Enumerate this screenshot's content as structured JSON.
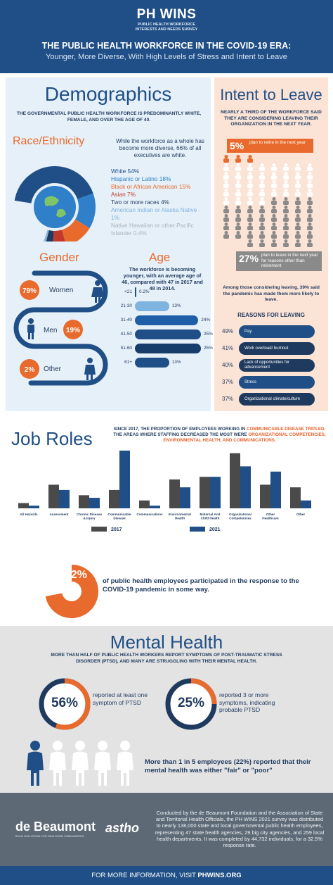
{
  "header": {
    "logo": "PH WINS",
    "logo_sub_1": "PUBLIC HEALTH WORKFORCE",
    "logo_sub_2": "INTERESTS AND NEEDS SURVEY",
    "title": "THE PUBLIC HEALTH WORKFORCE IN THE COVID-19 ERA:",
    "subtitle": "Younger, More Diverse, With High Levels of Stress and Intent to Leave"
  },
  "demographics": {
    "title": "Demographics",
    "desc": "THE GOVERNMENTAL PUBLIC HEALTH WORKFORCE IS PREDOMINANTLY WHITE, FEMALE, AND OVER THE AGE OF 40.",
    "race_title": "Race/Ethnicity",
    "race_desc": "While the workforce as a whole has become more diverse, 66% of all executives are white.",
    "race": [
      {
        "label": "White 54%",
        "value": 54,
        "color": "#1f4f86"
      },
      {
        "label": "Hispanic or Latino 18%",
        "value": 18,
        "color": "#2f7fc9"
      },
      {
        "label": "Black or African American 15%",
        "value": 15,
        "color": "#e86a2c"
      },
      {
        "label": "Asian 7%",
        "value": 7,
        "color": "#c0392b"
      },
      {
        "label": "Two or more races 4%",
        "value": 4,
        "color": "#1f3a5f"
      },
      {
        "label": "American Indian or Alaska Native 1%",
        "value": 1,
        "color": "#7fb3e0"
      },
      {
        "label": "Native Hawaiian or other Pacific Islander 0.4%",
        "value": 0.4,
        "color": "#a9b3bc"
      }
    ],
    "gender_title": "Gender",
    "gender": [
      {
        "pct": "79%",
        "label": "Women"
      },
      {
        "pct": "19%",
        "label": "Men"
      },
      {
        "pct": "2%",
        "label": "Other"
      }
    ],
    "age_title": "Age",
    "age_desc": "The workforce is becoming younger, with an average age of 46, compared with 47 in 2017 and 48 in 2014.",
    "age": [
      {
        "label": "<21",
        "value": 0.2,
        "value_label": "0.2%",
        "color": "#1f4f86"
      },
      {
        "label": "21-30",
        "value": 13,
        "value_label": "13%",
        "color": "#7fb3e0"
      },
      {
        "label": "31-40",
        "value": 24,
        "value_label": "24%",
        "color": "#1f5fa8"
      },
      {
        "label": "41-50",
        "value": 25,
        "value_label": "25%",
        "color": "#1f4f86"
      },
      {
        "label": "51-60",
        "value": 25,
        "value_label": "25%",
        "color": "#173d6a"
      },
      {
        "label": "61+",
        "value": 13,
        "value_label": "13%",
        "color": "#1f4f86"
      }
    ]
  },
  "intent": {
    "title": "Intent to Leave",
    "desc": "NEARLY A THIRD OF THE WORKFORCE SAID THEY ARE CONSIDERING LEAVING THEIR ORGANIZATION IN THE NEXT YEAR.",
    "retire_pct": "5%",
    "retire_text": "plan to retire in the next year",
    "leave_pct": "27%",
    "leave_text": "plan to leave in the next year for reasons other than retirement",
    "among": "Among those considering leaving, 39% said the pandemic has made them more likely to leave.",
    "reasons_title": "REASONS FOR LEAVING",
    "reasons": [
      {
        "pct": "49%",
        "label": "Pay",
        "value": 49,
        "color": "#1f4f86"
      },
      {
        "pct": "41%",
        "label": "Work overload/ burnout",
        "value": 41,
        "color": "#1f3a5f"
      },
      {
        "pct": "40%",
        "label": "Lack of opportunities for advancement",
        "value": 40,
        "color": "#1f3a5f"
      },
      {
        "pct": "37%",
        "label": "Stress",
        "value": 37,
        "color": "#1f4f86"
      },
      {
        "pct": "37%",
        "label": "Organizational climate/culture",
        "value": 37,
        "color": "#1f3a5f"
      }
    ]
  },
  "jobs": {
    "title": "Job Roles",
    "desc_1": "SINCE 2017, THE PROPORTION OF EMPLOYEES WORKING IN ",
    "desc_highlight_1": "COMMUNICABLE DISEASE TRIPLED.",
    "desc_2": " THE AREAS WHERE STAFFING DECREASED THE MOST WERE ",
    "desc_highlight_2": "ORGANIZATIONAL COMPETENCIES, ENVIRONMENTAL HEALTH, AND COMMUNICATIONS."
  },
  "chart_data": {
    "type": "bar",
    "categories": [
      "All Hazards",
      "Assessment",
      "Chronic Disease & Injury",
      "Communicable Disease",
      "Communications",
      "Environmental Health",
      "Maternal And Child Health",
      "Organizational Competencies",
      "Other Healthcare",
      "Other"
    ],
    "series": [
      {
        "name": "2017",
        "values": [
          2,
          9,
          5,
          7,
          3,
          11,
          12,
          21,
          9,
          8
        ],
        "color": "#4a4a4a"
      },
      {
        "name": "2021",
        "values": [
          1,
          7,
          4,
          22,
          1,
          8,
          12,
          16,
          14,
          3
        ],
        "color": "#1f4f86"
      }
    ],
    "title": "",
    "xlabel": "",
    "ylabel": ""
  },
  "response": {
    "pct": "72%",
    "pct_value": 72,
    "text": "of public health employees participated in the response to the COVID-19 pandemic in some way."
  },
  "mental_health": {
    "title": "Mental Health",
    "desc": "MORE THAN HALF OF PUBLIC HEALTH WORKERS REPORT SYMPTOMS OF POST-TRAUMATIC STRESS DISORDER (PTSD), AND MANY ARE STRUGGLING WITH THEIR MENTAL HEALTH.",
    "stat1_pct": "56%",
    "stat1_value": 56,
    "stat1_text": "reported at least one symptom of PTSD",
    "stat2_pct": "25%",
    "stat2_value": 25,
    "stat2_text": "reported 3 or more symptoms, indicating probable PTSD",
    "fair_text": "More than 1 in 5 employees (22%) reported that their mental health was either \"fair\" or \"poor\""
  },
  "footer": {
    "org1": "de Beaumont",
    "org1_tag": "BOLD SOLUTIONS FOR HEALTHIER COMMUNITIES",
    "org2": "astho",
    "text": "Conducted by the de Beaumont Foundation and the Association of State and Territorial Health Officials, the PH WINS 2021 survey was distributed to nearly 138,000 state and local governmental public health employees, representing 47 state health agencies, 29 big city agencies, and 259 local health departments. It was completed by 44,732 individuals, for a 32.5% response rate.",
    "bottom_prefix": "FOR MORE INFORMATION, VISIT ",
    "bottom_link": "PHWINS.ORG"
  }
}
